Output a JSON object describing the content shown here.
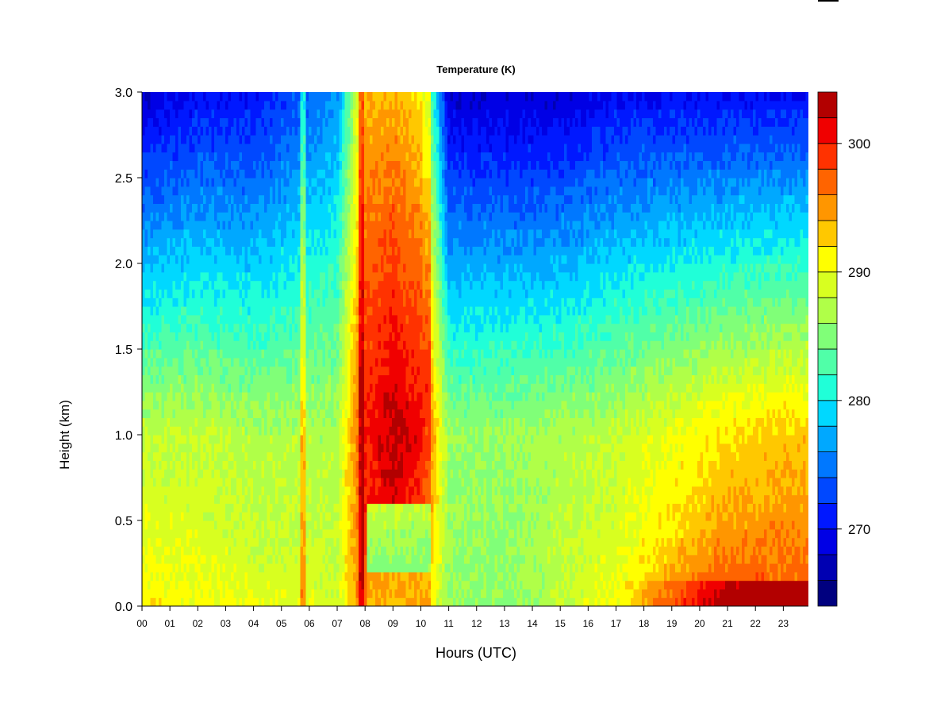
{
  "chart_data": {
    "type": "heatmap",
    "title": "Temperature (K)",
    "xlabel": "Hours (UTC)",
    "ylabel": "Height (km)",
    "x_ticks": [
      "00",
      "01",
      "02",
      "03",
      "04",
      "05",
      "06",
      "07",
      "08",
      "09",
      "10",
      "11",
      "12",
      "13",
      "14",
      "15",
      "16",
      "17",
      "18",
      "19",
      "20",
      "21",
      "22",
      "23"
    ],
    "xlim": [
      0,
      23.9
    ],
    "y_ticks": [
      "0.0",
      "0.5",
      "1.0",
      "1.5",
      "2.0",
      "2.5",
      "3.0"
    ],
    "ylim": [
      0,
      3.0
    ],
    "colorbar": {
      "levels": [
        264,
        266,
        268,
        270,
        272,
        274,
        276,
        278,
        280,
        282,
        284,
        286,
        288,
        290,
        292,
        294,
        296,
        298,
        300,
        302,
        304
      ],
      "tick_labels": [
        "270",
        "280",
        "290",
        "300"
      ],
      "tick_values": [
        270,
        280,
        290,
        300
      ],
      "colors": [
        "#00007f",
        "#0000b2",
        "#0000e5",
        "#0018ff",
        "#0048ff",
        "#0078ff",
        "#00a8ff",
        "#00d8ff",
        "#20ffd8",
        "#50ffa8",
        "#80ff78",
        "#b0ff48",
        "#d8ff20",
        "#ffff00",
        "#ffc800",
        "#ff9600",
        "#ff6400",
        "#ff3200",
        "#f00000",
        "#b20000"
      ]
    },
    "description_profile": {
      "hours": [
        0,
        2,
        4,
        6,
        7,
        8,
        9,
        10,
        11,
        13,
        15,
        17,
        19,
        21,
        23
      ],
      "surface_K": [
        292,
        291,
        290,
        290,
        289,
        297,
        297,
        292,
        286,
        285,
        288,
        291,
        296,
        300,
        299
      ],
      "mid_1km_K": [
        288,
        288,
        287,
        287,
        287,
        300,
        303,
        301,
        286,
        286,
        287,
        288,
        290,
        292,
        293
      ],
      "top_3km_K": [
        268,
        270,
        270,
        274,
        276,
        294,
        294,
        292,
        268,
        268,
        268,
        270,
        270,
        270,
        270
      ]
    }
  }
}
